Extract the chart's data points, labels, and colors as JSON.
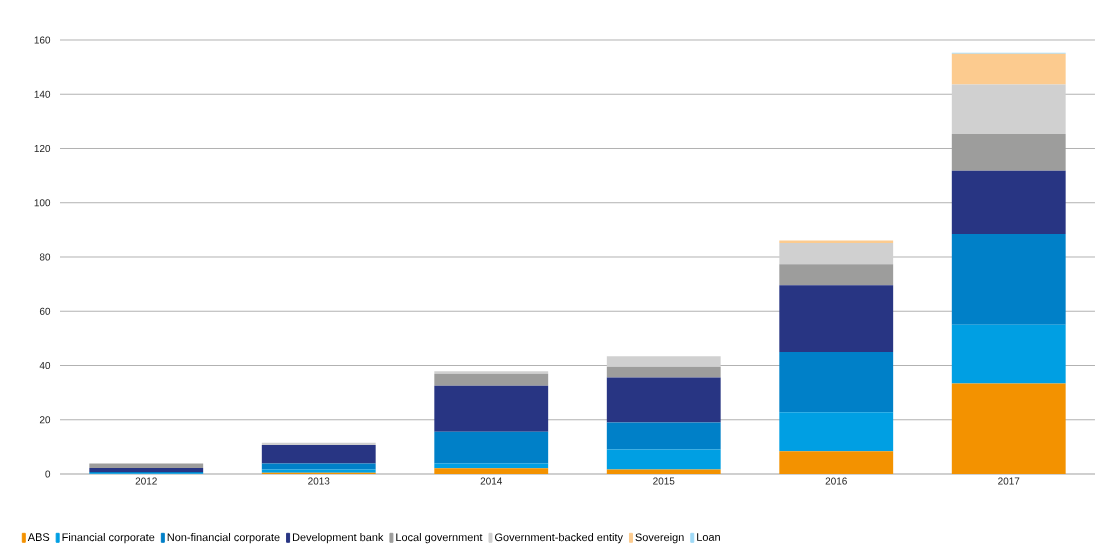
{
  "chart_data": {
    "type": "bar",
    "stacked": true,
    "categories": [
      "2012",
      "2013",
      "2014",
      "2015",
      "2016",
      "2017"
    ],
    "series": [
      {
        "name": "ABS",
        "color": "#f39200",
        "values": [
          0,
          0.5,
          2.1,
          1.7,
          8.4,
          33.4
        ]
      },
      {
        "name": "Financial corporate",
        "color": "#009fe3",
        "values": [
          0.3,
          1.2,
          1.8,
          7.3,
          14.4,
          21.6
        ]
      },
      {
        "name": "Non-financial corporate",
        "color": "#0080c8",
        "values": [
          0.4,
          2.2,
          11.7,
          10,
          22.2,
          33.5
        ]
      },
      {
        "name": "Development bank",
        "color": "#283583",
        "values": [
          1.5,
          6.8,
          16.9,
          16.6,
          24.6,
          23.3
        ]
      },
      {
        "name": "Local government",
        "color": "#9d9d9c",
        "values": [
          1.7,
          0,
          4.5,
          3.9,
          7.7,
          13.5
        ]
      },
      {
        "name": "Government-backed entity",
        "color": "#d0d0d0",
        "values": [
          0,
          0.8,
          0.9,
          3.9,
          7.9,
          18.3
        ]
      },
      {
        "name": "Sovereign",
        "color": "#fccb8f",
        "values": [
          0,
          0,
          0,
          0,
          0.9,
          11.3
        ]
      },
      {
        "name": "Loan",
        "color": "#9fd9f6",
        "values": [
          0,
          0,
          0,
          0,
          0,
          0.4
        ]
      }
    ],
    "ylim": [
      0,
      160
    ],
    "yticks": [
      0,
      20,
      40,
      60,
      80,
      100,
      120,
      140,
      160
    ],
    "grid": "y",
    "legend": "bottom"
  }
}
